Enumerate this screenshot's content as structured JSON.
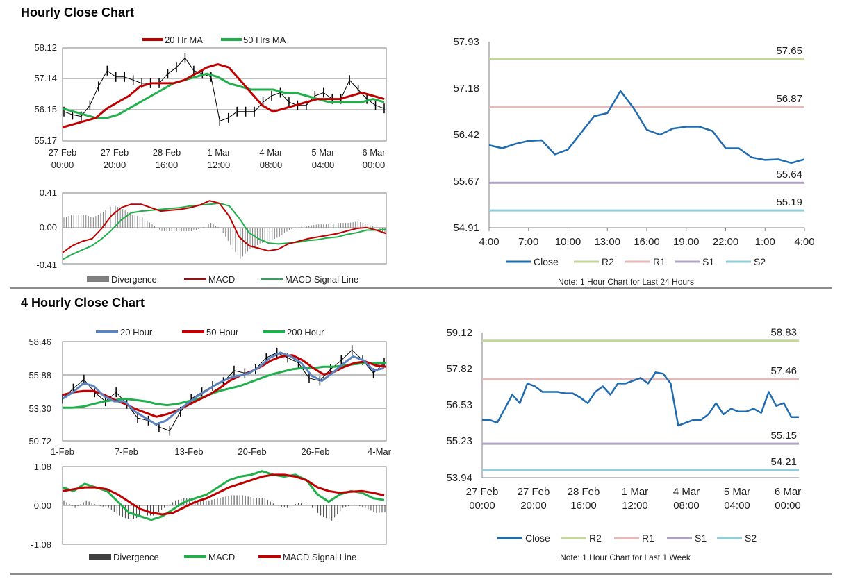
{
  "sections": {
    "hourly_title": "Hourly Close Chart",
    "four_hourly_title": "4 Hourly Close Chart"
  },
  "colors": {
    "red": "#c00000",
    "green": "#1fb04b",
    "blue": "#5b84bf",
    "close": "#1f6bb0",
    "r2": "#c4d79b",
    "r1": "#e6b8b7",
    "s1": "#b1a0c7",
    "s2": "#92cddc",
    "grey": "#808080",
    "dark": "#404040"
  },
  "chart_data": [
    {
      "id": "hourly_ma",
      "type": "line",
      "legend": [
        "20 Hr MA",
        "50 Hrs MA"
      ],
      "y_ticks": [
        "58.12",
        "57.14",
        "56.15",
        "55.17"
      ],
      "ylim": [
        55.17,
        58.12
      ],
      "x_labels": [
        [
          "27 Feb",
          "00:00"
        ],
        [
          "27 Feb",
          "20:00"
        ],
        [
          "28 Feb",
          "16:00"
        ],
        [
          "1 Mar",
          "12:00"
        ],
        [
          "4 Mar",
          "08:00"
        ],
        [
          "5 Mar",
          "04:00"
        ],
        [
          "6 Mar",
          "00:00"
        ]
      ],
      "series": [
        {
          "name": "20 Hr MA",
          "values": [
            55.6,
            55.7,
            55.8,
            55.9,
            56.2,
            56.4,
            56.6,
            56.9,
            57.0,
            57.0,
            57.0,
            57.1,
            57.3,
            57.5,
            57.6,
            57.5,
            57.1,
            56.7,
            56.3,
            56.1,
            56.2,
            56.3,
            56.4,
            56.5,
            56.5,
            56.5,
            56.6,
            56.7,
            56.6,
            56.5
          ]
        },
        {
          "name": "50 Hrs MA",
          "values": [
            56.2,
            56.1,
            56.0,
            55.9,
            55.9,
            56.0,
            56.2,
            56.4,
            56.6,
            56.8,
            57.0,
            57.1,
            57.2,
            57.3,
            57.2,
            57.0,
            56.9,
            56.8,
            56.8,
            56.8,
            56.7,
            56.7,
            56.6,
            56.5,
            56.4,
            56.4,
            56.4,
            56.4,
            56.5,
            56.4
          ]
        },
        {
          "name": "Price",
          "values": [
            56.1,
            56.0,
            55.95,
            56.3,
            56.9,
            57.4,
            57.2,
            57.2,
            57.1,
            57.0,
            57.0,
            57.0,
            57.3,
            57.5,
            57.8,
            57.4,
            57.3,
            57.2,
            55.8,
            55.9,
            56.1,
            56.1,
            56.1,
            56.4,
            56.6,
            56.7,
            56.4,
            56.3,
            56.3,
            56.6,
            56.7,
            56.5,
            56.5,
            57.1,
            56.8,
            56.5,
            56.3,
            56.2
          ]
        }
      ]
    },
    {
      "id": "hourly_macd",
      "type": "line",
      "legend": [
        "Divergence",
        "MACD",
        "MACD Signal Line"
      ],
      "y_ticks": [
        "0.41",
        "0.00",
        "-0.41"
      ],
      "ylim": [
        -0.41,
        0.41
      ],
      "series": [
        {
          "name": "MACD",
          "values": [
            -0.28,
            -0.2,
            -0.15,
            -0.12,
            0.0,
            0.15,
            0.24,
            0.28,
            0.28,
            0.24,
            0.2,
            0.21,
            0.22,
            0.24,
            0.27,
            0.32,
            0.29,
            0.14,
            -0.1,
            -0.2,
            -0.23,
            -0.26,
            -0.24,
            -0.18,
            -0.15,
            -0.12,
            -0.1,
            -0.08,
            -0.06,
            -0.03,
            0.0,
            0.01,
            -0.02,
            -0.06
          ]
        },
        {
          "name": "MACD Signal Line",
          "values": [
            -0.36,
            -0.3,
            -0.25,
            -0.2,
            -0.12,
            -0.02,
            0.1,
            0.18,
            0.2,
            0.21,
            0.22,
            0.23,
            0.24,
            0.26,
            0.27,
            0.28,
            0.29,
            0.26,
            0.12,
            -0.05,
            -0.12,
            -0.17,
            -0.18,
            -0.17,
            -0.16,
            -0.14,
            -0.13,
            -0.11,
            -0.1,
            -0.07,
            -0.05,
            -0.02,
            -0.02,
            -0.01
          ]
        }
      ]
    },
    {
      "id": "hourly_close_24h",
      "type": "line",
      "y_ticks": [
        "57.93",
        "57.18",
        "56.42",
        "55.67",
        "54.91"
      ],
      "ylim": [
        54.91,
        57.93
      ],
      "x_ticks": [
        "4:00",
        "7:00",
        "10:00",
        "13:00",
        "16:00",
        "19:00",
        "22:00",
        "1:00",
        "4:00"
      ],
      "levels": [
        {
          "name": "R2",
          "value": 57.65,
          "label": "57.65"
        },
        {
          "name": "R1",
          "value": 56.87,
          "label": "56.87"
        },
        {
          "name": "S1",
          "value": 55.64,
          "label": "55.64"
        },
        {
          "name": "S2",
          "value": 55.19,
          "label": "55.19"
        }
      ],
      "legend": [
        "Close",
        "R2",
        "R1",
        "S1",
        "S2"
      ],
      "note": "Note: 1 Hour Chart for Last 24 Hours",
      "close": [
        56.25,
        56.2,
        56.27,
        56.32,
        56.33,
        56.1,
        56.18,
        56.45,
        56.72,
        56.77,
        57.13,
        56.85,
        56.5,
        56.42,
        56.52,
        56.55,
        56.55,
        56.48,
        56.2,
        56.2,
        56.05,
        56.01,
        56.02,
        55.96,
        56.02
      ]
    },
    {
      "id": "four_hourly_ma",
      "type": "line",
      "legend": [
        "20 Hour",
        "50 Hour",
        "200 Hour"
      ],
      "y_ticks": [
        "58.46",
        "55.88",
        "53.30",
        "50.72"
      ],
      "ylim": [
        50.72,
        58.46
      ],
      "x_ticks": [
        "1-Feb",
        "7-Feb",
        "13-Feb",
        "20-Feb",
        "26-Feb",
        "4-Mar"
      ],
      "series": [
        {
          "name": "20 Hour",
          "values": [
            54.0,
            54.5,
            55.2,
            55.0,
            54.2,
            53.8,
            53.8,
            53.0,
            52.5,
            52.0,
            52.3,
            53.0,
            53.6,
            54.2,
            54.7,
            55.2,
            55.6,
            55.8,
            56.0,
            56.5,
            57.2,
            57.6,
            57.3,
            56.8,
            55.8,
            55.4,
            56.0,
            56.7,
            57.3,
            57.0,
            56.2,
            56.4
          ]
        },
        {
          "name": "50 Hour",
          "values": [
            54.3,
            54.5,
            54.6,
            54.6,
            54.3,
            53.9,
            53.6,
            53.2,
            52.9,
            52.6,
            52.8,
            53.1,
            53.5,
            53.9,
            54.3,
            54.8,
            55.4,
            55.8,
            56.1,
            56.5,
            57.0,
            57.3,
            57.4,
            57.0,
            56.4,
            55.9,
            56.1,
            56.5,
            56.8,
            56.9,
            56.6,
            56.5
          ]
        },
        {
          "name": "200 Hour",
          "values": [
            53.3,
            53.3,
            53.4,
            53.6,
            53.8,
            53.9,
            54.0,
            53.9,
            53.8,
            53.6,
            53.5,
            53.6,
            53.8,
            54.0,
            54.3,
            54.6,
            54.8,
            55.0,
            55.3,
            55.6,
            55.9,
            56.1,
            56.3,
            56.4,
            56.4,
            56.5,
            56.5,
            56.6,
            56.7,
            56.8,
            56.8,
            56.8
          ]
        },
        {
          "name": "Price",
          "values": [
            54.0,
            54.8,
            55.5,
            54.5,
            53.8,
            54.5,
            53.6,
            52.5,
            52.3,
            51.8,
            51.5,
            53.0,
            54.0,
            54.5,
            55.0,
            55.3,
            56.2,
            56.0,
            56.3,
            57.2,
            57.6,
            57.2,
            56.8,
            55.6,
            55.4,
            56.3,
            57.0,
            57.8,
            57.0,
            56.0,
            56.8
          ]
        }
      ]
    },
    {
      "id": "four_hourly_macd",
      "type": "line",
      "legend": [
        "Divergence",
        "MACD",
        "MACD Signal Line"
      ],
      "y_ticks": [
        "1.08",
        "0.00",
        "-1.08"
      ],
      "ylim": [
        -1.08,
        1.08
      ],
      "series": [
        {
          "name": "MACD",
          "values": [
            0.5,
            0.4,
            0.6,
            0.5,
            0.4,
            0.1,
            -0.2,
            -0.3,
            -0.4,
            -0.3,
            -0.1,
            0.1,
            0.2,
            0.3,
            0.5,
            0.7,
            0.8,
            0.85,
            0.95,
            0.85,
            0.8,
            0.85,
            0.7,
            0.3,
            0.1,
            0.3,
            0.4,
            0.35,
            0.2,
            0.15
          ]
        },
        {
          "name": "MACD Signal Line",
          "values": [
            0.4,
            0.45,
            0.5,
            0.5,
            0.45,
            0.3,
            0.1,
            -0.1,
            -0.2,
            -0.25,
            -0.2,
            -0.05,
            0.1,
            0.2,
            0.35,
            0.5,
            0.6,
            0.7,
            0.8,
            0.85,
            0.85,
            0.8,
            0.7,
            0.5,
            0.4,
            0.35,
            0.38,
            0.4,
            0.35,
            0.28
          ]
        }
      ]
    },
    {
      "id": "hourly_close_1w",
      "type": "line",
      "y_ticks": [
        "59.12",
        "57.82",
        "56.53",
        "55.23",
        "53.94"
      ],
      "ylim": [
        53.94,
        59.12
      ],
      "x_labels": [
        [
          "27 Feb",
          "00:00"
        ],
        [
          "27 Feb",
          "20:00"
        ],
        [
          "28 Feb",
          "16:00"
        ],
        [
          "1 Mar",
          "12:00"
        ],
        [
          "4 Mar",
          "08:00"
        ],
        [
          "5 Mar",
          "04:00"
        ],
        [
          "6 Mar",
          "00:00"
        ]
      ],
      "levels": [
        {
          "name": "R2",
          "value": 58.83,
          "label": "58.83"
        },
        {
          "name": "R1",
          "value": 57.46,
          "label": "57.46"
        },
        {
          "name": "S1",
          "value": 55.15,
          "label": "55.15"
        },
        {
          "name": "S2",
          "value": 54.21,
          "label": "54.21"
        }
      ],
      "legend": [
        "Close",
        "R2",
        "R1",
        "S1",
        "S2"
      ],
      "note": "Note: 1 Hour Chart for Last 1 Week",
      "close": [
        56.0,
        56.0,
        55.9,
        56.4,
        56.9,
        56.6,
        57.3,
        57.2,
        57.0,
        57.0,
        57.0,
        56.95,
        56.95,
        56.8,
        56.6,
        57.0,
        57.2,
        56.9,
        57.3,
        57.3,
        57.4,
        57.5,
        57.3,
        57.7,
        57.65,
        57.3,
        55.8,
        55.9,
        56.0,
        56.0,
        56.2,
        56.6,
        56.2,
        56.4,
        56.3,
        56.3,
        56.4,
        56.25,
        57.0,
        56.5,
        56.6,
        56.1,
        56.1
      ]
    }
  ]
}
